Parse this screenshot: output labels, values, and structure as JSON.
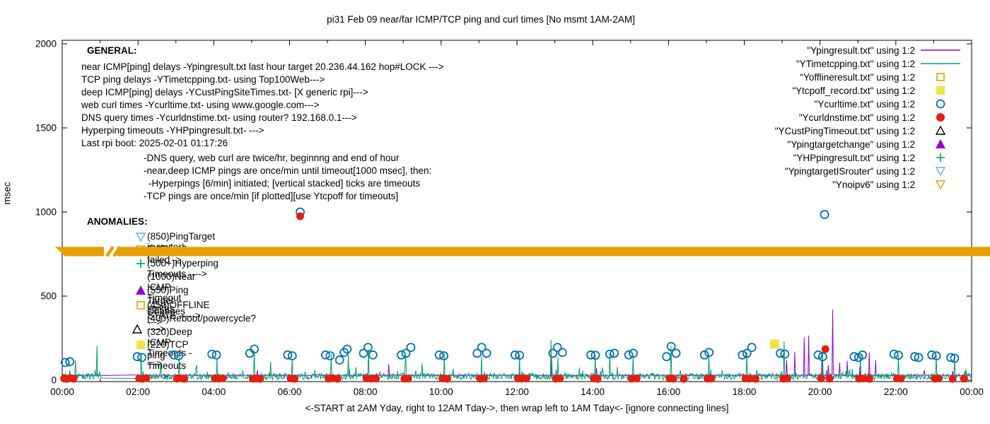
{
  "palette": {
    "purple": "#9400d3",
    "teal": "#009e73",
    "gold": "#e69f00",
    "yellow": "#f0e442",
    "blue": "#0072b2",
    "red": "#e51e10",
    "sky": "#56b4e9",
    "black": "#000000"
  },
  "title": "pi31 Feb 09  near/far ICMP/TCP ping and curl times [No msmt 1AM-2AM]",
  "axes": {
    "ylabel": "msec",
    "xlabel": "<-START at 2AM Yday, right to 12AM Tday->, then wrap left to 1AM Tday<- [ignore connecting lines]",
    "yticks": [
      "0",
      "500",
      "1000",
      "1500",
      "2000"
    ],
    "ytick_values": [
      0,
      500,
      1000,
      1500,
      2000
    ],
    "xticks": [
      "00:00",
      "02:00",
      "04:00",
      "06:00",
      "08:00",
      "10:00",
      "12:00",
      "14:00",
      "16:00",
      "18:00",
      "20:00",
      "22:00",
      "00:00"
    ]
  },
  "general": {
    "heading": "GENERAL:",
    "lines": [
      "near ICMP[ping] delays -Ypingresult.txt last hour target 20.236.44.162 hop#LOCK --->",
      "TCP ping delays -YTimetcpping.txt- using Top100Web--->",
      "deep ICMP[ping] delays -YCustPingSiteTimes.txt- [X generic rpi]--->",
      "web curl times -Ycurltime.txt- using www.google.com--->",
      "DNS query times -Ycurldnstime.txt- using router? 192.168.0.1--->",
      "Hyperping timeouts -YHPpingresult.txt- --->",
      "Last rpi boot: 2025-02-01 01:17:26"
    ],
    "indented_lines": [
      "-DNS query, web curl are twice/hr, beginnng and end of hour",
      "-near,deep ICMP pings are once/min until timeout[1000 msec], then:",
      "-Hyperpings [6/min] initiated; [vertical stacked] ticks are timeouts",
      "-TCP pings are once/min [if plotted][use Ytcpoff for timeouts]"
    ]
  },
  "anomalies": {
    "heading": "ANOMALIES:",
    "rows": [
      {
        "label": "(850)PingTarget is router!"
      },
      {
        "label": "(765)ipv6 failed ->"
      },
      {
        "label": "(500+)Hyperping Timeouts ---->"
      },
      {
        "label": "(1000)Near ICMP Timeout spikes"
      },
      {
        "label": "(550)Ping Target Changes --->"
      },
      {
        "label": "(450)OFFLINE STATE ----->"
      },
      {
        "label": "(400)Reboot/powercycle? ---->"
      },
      {
        "label": "(320)Deep ICMP Timeouts ---->"
      },
      {
        "label": "(220)TCP ping Timeouts ----->"
      }
    ]
  },
  "legend": {
    "entries": [
      {
        "label": "\"Ypingresult.txt\" using 1:2"
      },
      {
        "label": "\"YTimetcpping.txt\" using 1:2"
      },
      {
        "label": "\"Yofflineresult.txt\" using 1:2"
      },
      {
        "label": "\"Ytcpoff_record.txt\" using 1:2"
      },
      {
        "label": "\"Ycurltime.txt\" using 1:2"
      },
      {
        "label": "\"Ycurldnstime.txt\" using 1:2"
      },
      {
        "label": "\"YCustPingTimeout.txt\" using 1:2"
      },
      {
        "label": "\"Ypingtargetchange\" using 1:2"
      },
      {
        "label": "\"YHPpingresult.txt\" using 1:2"
      },
      {
        "label": "\"YpingtargetISrouter\" using 1:2"
      },
      {
        "label": "\"Ynoipv6\" using 1:2"
      }
    ]
  },
  "chart_data": {
    "type": "line",
    "title": "pi31 Feb 09  near/far ICMP/TCP ping and curl times [No msmt 1AM-2AM]",
    "xlabel": "<-START at 2AM Yday, right to 12AM Tday->, then wrap left to 1AM Tday<- [ignore connecting lines]",
    "ylabel": "msec",
    "xlim_hours": [
      0,
      24
    ],
    "ylim": [
      0,
      2000
    ],
    "grid": false,
    "legend_position": "top-right-inside",
    "no_measurement_gap_hours": [
      1.05,
      1.98
    ],
    "series": [
      {
        "name": "Ypingresult.txt",
        "color_key": "purple",
        "type": "noisy-line",
        "baseline": 26,
        "noise": 6,
        "seed": 11,
        "spikes": [
          [
            5.15,
            60
          ],
          [
            8.62,
            95
          ],
          [
            12.92,
            130
          ],
          [
            14.1,
            70
          ],
          [
            19.12,
            120
          ],
          [
            19.33,
            170
          ],
          [
            19.58,
            255
          ],
          [
            19.7,
            265
          ],
          [
            20.05,
            120
          ],
          [
            20.22,
            90
          ],
          [
            20.34,
            420
          ],
          [
            20.52,
            105
          ],
          [
            20.72,
            115
          ],
          [
            21.05,
            80
          ],
          [
            21.3,
            165
          ],
          [
            21.47,
            120
          ],
          [
            22.75,
            60
          ],
          [
            23.5,
            55
          ]
        ]
      },
      {
        "name": "YTimetcpping.txt",
        "color_key": "teal",
        "type": "noisy-line",
        "baseline": 3,
        "noise": 38,
        "seed": 77,
        "spikes": [
          [
            0.35,
            120
          ],
          [
            0.92,
            205
          ],
          [
            2.08,
            160
          ],
          [
            2.6,
            100
          ],
          [
            3.08,
            145
          ],
          [
            3.55,
            90
          ],
          [
            4.08,
            130
          ],
          [
            5.06,
            175
          ],
          [
            5.5,
            110
          ],
          [
            6.06,
            130
          ],
          [
            7.1,
            155
          ],
          [
            7.55,
            150
          ],
          [
            8.08,
            185
          ],
          [
            9.06,
            150
          ],
          [
            9.5,
            100
          ],
          [
            10.08,
            160
          ],
          [
            11.06,
            145
          ],
          [
            12.07,
            150
          ],
          [
            12.9,
            240
          ],
          [
            13.08,
            140
          ],
          [
            14.07,
            150
          ],
          [
            14.45,
            160
          ],
          [
            15.07,
            145
          ],
          [
            16.07,
            200
          ],
          [
            17.06,
            150
          ],
          [
            18.07,
            165
          ],
          [
            19.05,
            230
          ],
          [
            20.07,
            160
          ],
          [
            21.06,
            150
          ],
          [
            22.06,
            145
          ],
          [
            23.06,
            150
          ],
          [
            23.55,
            140
          ]
        ]
      },
      {
        "name": "Ycurltime.txt",
        "color_key": "blue",
        "type": "scatter",
        "marker": "circle-open",
        "points": [
          [
            0.08,
            105
          ],
          [
            0.2,
            110
          ],
          [
            1.98,
            140
          ],
          [
            2.1,
            135
          ],
          [
            2.95,
            150
          ],
          [
            3.07,
            145
          ],
          [
            3.95,
            155
          ],
          [
            4.07,
            150
          ],
          [
            4.95,
            160
          ],
          [
            5.07,
            185
          ],
          [
            5.95,
            150
          ],
          [
            6.07,
            145
          ],
          [
            6.28,
            1000
          ],
          [
            6.95,
            150
          ],
          [
            7.07,
            145
          ],
          [
            7.32,
            120
          ],
          [
            7.44,
            165
          ],
          [
            7.52,
            185
          ],
          [
            7.95,
            160
          ],
          [
            8.07,
            195
          ],
          [
            8.2,
            150
          ],
          [
            8.95,
            150
          ],
          [
            9.07,
            160
          ],
          [
            9.2,
            195
          ],
          [
            9.95,
            150
          ],
          [
            10.07,
            145
          ],
          [
            10.95,
            160
          ],
          [
            11.07,
            195
          ],
          [
            11.2,
            160
          ],
          [
            11.95,
            150
          ],
          [
            12.07,
            148
          ],
          [
            12.95,
            160
          ],
          [
            13.07,
            195
          ],
          [
            13.2,
            165
          ],
          [
            13.95,
            150
          ],
          [
            14.07,
            148
          ],
          [
            14.45,
            155
          ],
          [
            14.57,
            160
          ],
          [
            14.95,
            150
          ],
          [
            15.07,
            160
          ],
          [
            15.95,
            140
          ],
          [
            16.07,
            200
          ],
          [
            16.2,
            160
          ],
          [
            16.95,
            150
          ],
          [
            17.07,
            165
          ],
          [
            17.95,
            150
          ],
          [
            18.07,
            160
          ],
          [
            18.2,
            195
          ],
          [
            18.95,
            160
          ],
          [
            19.07,
            155
          ],
          [
            19.95,
            150
          ],
          [
            20.07,
            140
          ],
          [
            20.12,
            985
          ],
          [
            20.9,
            140
          ],
          [
            21.02,
            135
          ],
          [
            21.12,
            150
          ],
          [
            21.95,
            155
          ],
          [
            22.07,
            148
          ],
          [
            22.5,
            140
          ],
          [
            22.6,
            135
          ],
          [
            22.95,
            150
          ],
          [
            23.07,
            145
          ],
          [
            23.45,
            135
          ],
          [
            23.55,
            130
          ]
        ]
      },
      {
        "name": "Ycurldnstime.txt",
        "color_key": "red",
        "type": "scatter",
        "marker": "circle-filled",
        "points": [
          [
            0.05,
            10
          ],
          [
            0.13,
            8
          ],
          [
            0.22,
            12
          ],
          [
            0.3,
            9
          ],
          [
            2.03,
            10
          ],
          [
            2.12,
            8
          ],
          [
            2.22,
            12
          ],
          [
            3.03,
            9
          ],
          [
            3.12,
            11
          ],
          [
            3.22,
            8
          ],
          [
            4.03,
            10
          ],
          [
            4.13,
            9
          ],
          [
            4.23,
            11
          ],
          [
            5.03,
            9
          ],
          [
            5.12,
            10
          ],
          [
            5.22,
            8
          ],
          [
            6.03,
            10
          ],
          [
            6.13,
            8
          ],
          [
            6.28,
            975
          ],
          [
            7.03,
            9
          ],
          [
            7.13,
            11
          ],
          [
            7.26,
            8
          ],
          [
            8.03,
            10
          ],
          [
            8.16,
            9
          ],
          [
            8.28,
            10
          ],
          [
            9.03,
            9
          ],
          [
            9.13,
            10
          ],
          [
            10.03,
            10
          ],
          [
            10.16,
            8
          ],
          [
            11.03,
            9
          ],
          [
            11.13,
            10
          ],
          [
            12.03,
            10
          ],
          [
            12.13,
            9
          ],
          [
            12.25,
            10
          ],
          [
            13.03,
            9
          ],
          [
            13.13,
            10
          ],
          [
            14.03,
            10
          ],
          [
            14.13,
            8
          ],
          [
            15.03,
            9
          ],
          [
            15.16,
            10
          ],
          [
            16.03,
            10
          ],
          [
            16.13,
            9
          ],
          [
            16.4,
            8
          ],
          [
            17.03,
            9
          ],
          [
            17.13,
            10
          ],
          [
            18.03,
            10
          ],
          [
            18.13,
            9
          ],
          [
            18.3,
            8
          ],
          [
            19.03,
            9
          ],
          [
            19.13,
            10
          ],
          [
            20.03,
            10
          ],
          [
            20.14,
            185
          ],
          [
            20.25,
            9
          ],
          [
            21.03,
            9
          ],
          [
            21.13,
            10
          ],
          [
            21.3,
            8
          ],
          [
            22.03,
            10
          ],
          [
            22.13,
            9
          ],
          [
            23.03,
            9
          ],
          [
            23.13,
            10
          ],
          [
            23.5,
            8
          ],
          [
            23.8,
            9
          ]
        ]
      },
      {
        "name": "Yofflineresult.txt",
        "color_key": "gold",
        "type": "scatter",
        "marker": "square-open",
        "points": []
      },
      {
        "name": "Ytcpoff_record.txt",
        "color_key": "yellow",
        "type": "scatter",
        "marker": "square-filled",
        "points": [
          [
            18.8,
            215
          ]
        ]
      },
      {
        "name": "YCustPingTimeout.txt",
        "color_key": "black",
        "type": "scatter",
        "marker": "triangle-up-open",
        "points": []
      },
      {
        "name": "Ypingtargetchange",
        "color_key": "purple",
        "type": "scatter",
        "marker": "triangle-up-filled",
        "points": []
      },
      {
        "name": "YHPpingresult.txt",
        "color_key": "teal",
        "type": "scatter",
        "marker": "plus",
        "points": []
      },
      {
        "name": "YpingtargetISrouter",
        "color_key": "sky",
        "type": "scatter",
        "marker": "triangle-down-open",
        "points": []
      },
      {
        "name": "Ynoipv6",
        "color_key": "gold",
        "type": "band",
        "value": 765,
        "thickness_msec": 55,
        "t_range": [
          -0.06,
          24.5
        ],
        "gap_t": [
          1.1,
          1.5
        ],
        "left_taper": true
      }
    ]
  }
}
